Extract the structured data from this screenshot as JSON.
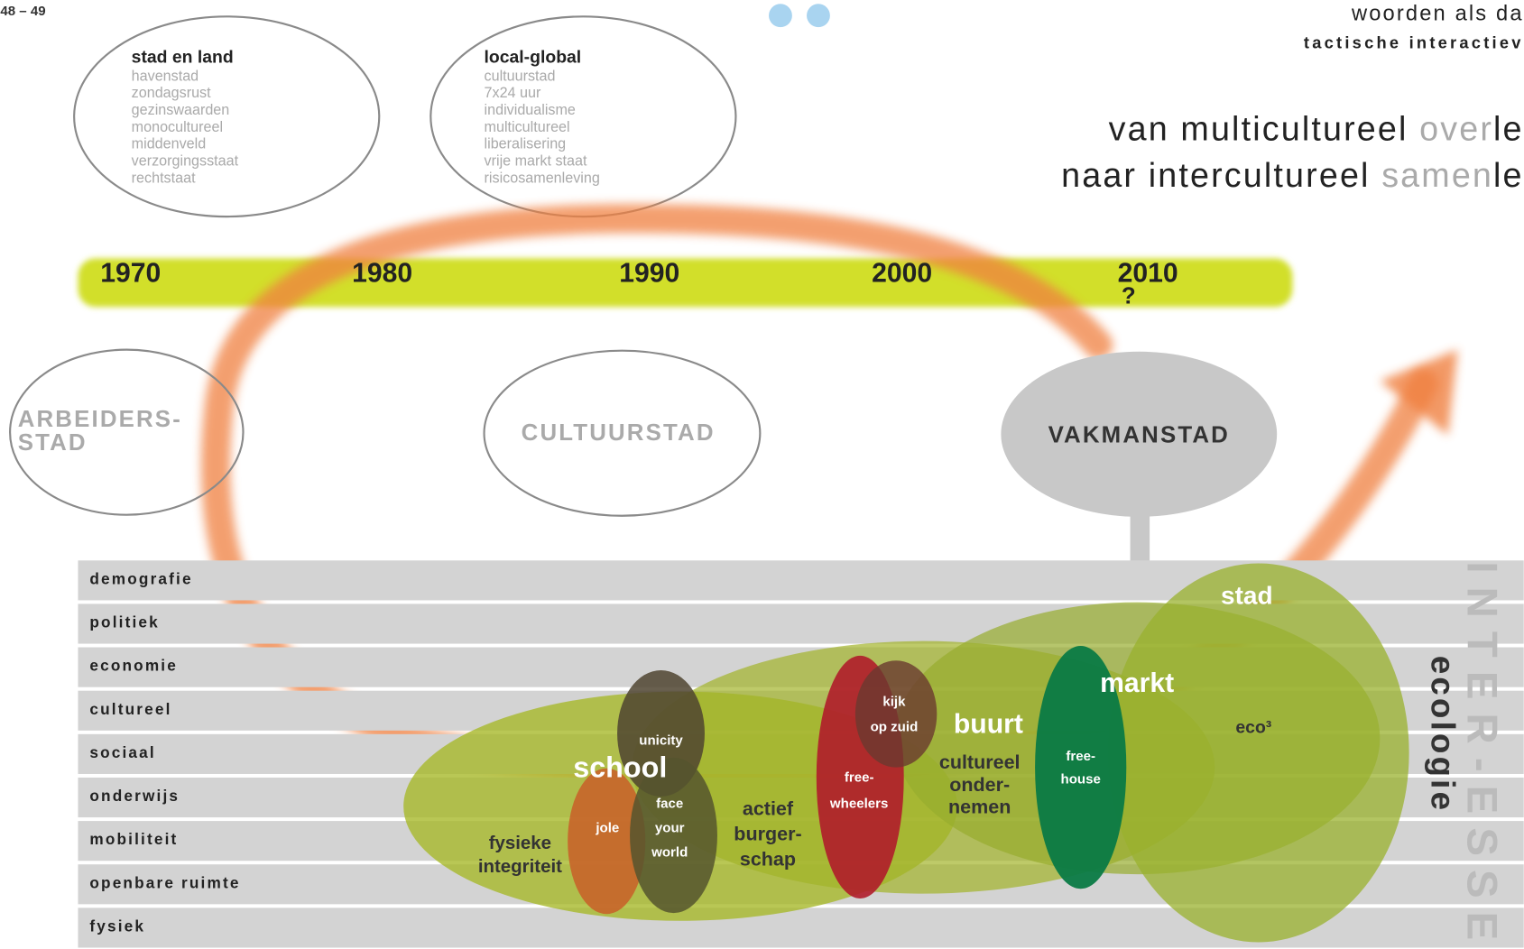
{
  "page_number": "48 – 49",
  "header": {
    "line1": "woorden als da",
    "line2": "tactische interactiev"
  },
  "headline": [
    {
      "start": "van multicultureel ",
      "grey": "over",
      "end": "le"
    },
    {
      "start": "naar intercultureel ",
      "grey": "samen",
      "end": "le"
    }
  ],
  "eras": [
    {
      "title": "stad en land",
      "items": [
        "havenstad",
        "zondagsrust",
        "gezinswaarden",
        "monocultureel",
        "middenveld",
        "verzorgingsstaat",
        "rechtstaat"
      ]
    },
    {
      "title": "local-global",
      "items": [
        "cultuurstad",
        "7x24 uur",
        "individualisme",
        "multicultureel",
        "liberalisering",
        "vrije markt staat",
        "risicosamenleving"
      ]
    }
  ],
  "timeline": [
    {
      "year": "1970"
    },
    {
      "year": "1980"
    },
    {
      "year": "1990"
    },
    {
      "year": "2000"
    },
    {
      "year": "2010",
      "note": "?"
    }
  ],
  "cities": [
    {
      "lines": [
        "ARBEIDERS-",
        "STAD"
      ]
    },
    {
      "lines": [
        "CULTUURSTAD"
      ]
    },
    {
      "lines": [
        "VAKMANSTAD"
      ]
    }
  ],
  "domains": [
    "demografie",
    "politiek",
    "economie",
    "cultureel",
    "sociaal",
    "onderwijs",
    "mobiliteit",
    "openbare ruimte",
    "fysiek"
  ],
  "side": {
    "vertical": "INTER-ESSE",
    "ecology": "ecologie"
  },
  "projects": [
    {
      "lines": [
        "stad"
      ]
    },
    {
      "lines": [
        "markt"
      ]
    },
    {
      "lines": [
        "eco³"
      ]
    },
    {
      "lines": [
        "buurt"
      ]
    },
    {
      "lines": [
        "cultureel",
        "onder-",
        "nemen"
      ]
    },
    {
      "lines": [
        "free-",
        "house"
      ]
    },
    {
      "lines": [
        "kijk",
        "op zuid"
      ]
    },
    {
      "lines": [
        "free-",
        "wheelers"
      ]
    },
    {
      "lines": [
        "actief",
        "burger-",
        "schap"
      ]
    },
    {
      "lines": [
        "school"
      ]
    },
    {
      "lines": [
        "unicity"
      ]
    },
    {
      "lines": [
        "face",
        "your",
        "world"
      ]
    },
    {
      "lines": [
        "jole"
      ]
    },
    {
      "lines": [
        "fysieke",
        "integriteit"
      ]
    }
  ]
}
